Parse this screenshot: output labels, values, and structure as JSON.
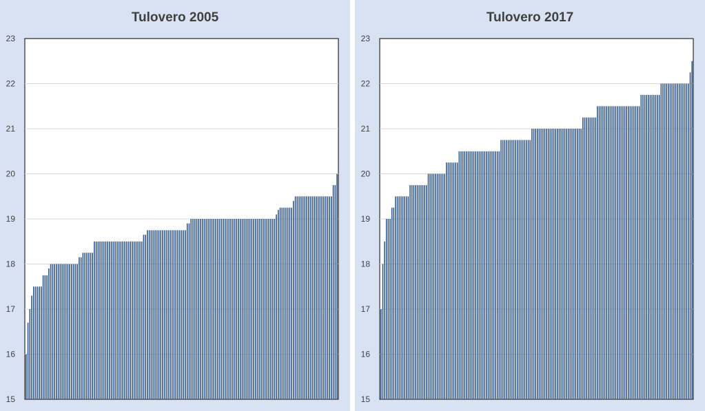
{
  "chart_data": [
    {
      "type": "bar",
      "title": "Tulovero 2005",
      "xlabel": "",
      "ylabel": "",
      "ylim": [
        15,
        23
      ],
      "yticks": [
        15,
        16,
        17,
        18,
        19,
        20,
        21,
        22,
        23
      ],
      "grid": true,
      "bar_color": "#3a5f8f",
      "segments": [
        {
          "count": 1,
          "value": 16.0
        },
        {
          "count": 1,
          "value": 16.7
        },
        {
          "count": 1,
          "value": 17.0
        },
        {
          "count": 1,
          "value": 17.3
        },
        {
          "count": 5,
          "value": 17.5
        },
        {
          "count": 3,
          "value": 17.75
        },
        {
          "count": 1,
          "value": 17.9
        },
        {
          "count": 15,
          "value": 18.0
        },
        {
          "count": 2,
          "value": 18.15
        },
        {
          "count": 6,
          "value": 18.25
        },
        {
          "count": 26,
          "value": 18.5
        },
        {
          "count": 2,
          "value": 18.65
        },
        {
          "count": 21,
          "value": 18.75
        },
        {
          "count": 2,
          "value": 18.9
        },
        {
          "count": 45,
          "value": 19.0
        },
        {
          "count": 1,
          "value": 19.1
        },
        {
          "count": 1,
          "value": 19.2
        },
        {
          "count": 7,
          "value": 19.25
        },
        {
          "count": 1,
          "value": 19.4
        },
        {
          "count": 20,
          "value": 19.5
        },
        {
          "count": 2,
          "value": 19.75
        },
        {
          "count": 1,
          "value": 20.0
        }
      ]
    },
    {
      "type": "bar",
      "title": "Tulovero 2017",
      "xlabel": "",
      "ylabel": "",
      "ylim": [
        15,
        23
      ],
      "yticks": [
        15,
        16,
        17,
        18,
        19,
        20,
        21,
        22,
        23
      ],
      "grid": true,
      "bar_color": "#3a5f8f",
      "segments": [
        {
          "count": 1,
          "value": 17.0
        },
        {
          "count": 1,
          "value": 18.0
        },
        {
          "count": 1,
          "value": 18.5
        },
        {
          "count": 3,
          "value": 19.0
        },
        {
          "count": 2,
          "value": 19.25
        },
        {
          "count": 8,
          "value": 19.5
        },
        {
          "count": 10,
          "value": 19.75
        },
        {
          "count": 10,
          "value": 20.0
        },
        {
          "count": 7,
          "value": 20.25
        },
        {
          "count": 23,
          "value": 20.5
        },
        {
          "count": 17,
          "value": 20.75
        },
        {
          "count": 28,
          "value": 21.0
        },
        {
          "count": 8,
          "value": 21.25
        },
        {
          "count": 24,
          "value": 21.5
        },
        {
          "count": 11,
          "value": 21.75
        },
        {
          "count": 16,
          "value": 22.0
        },
        {
          "count": 1,
          "value": 22.25
        },
        {
          "count": 1,
          "value": 22.5
        }
      ]
    }
  ]
}
